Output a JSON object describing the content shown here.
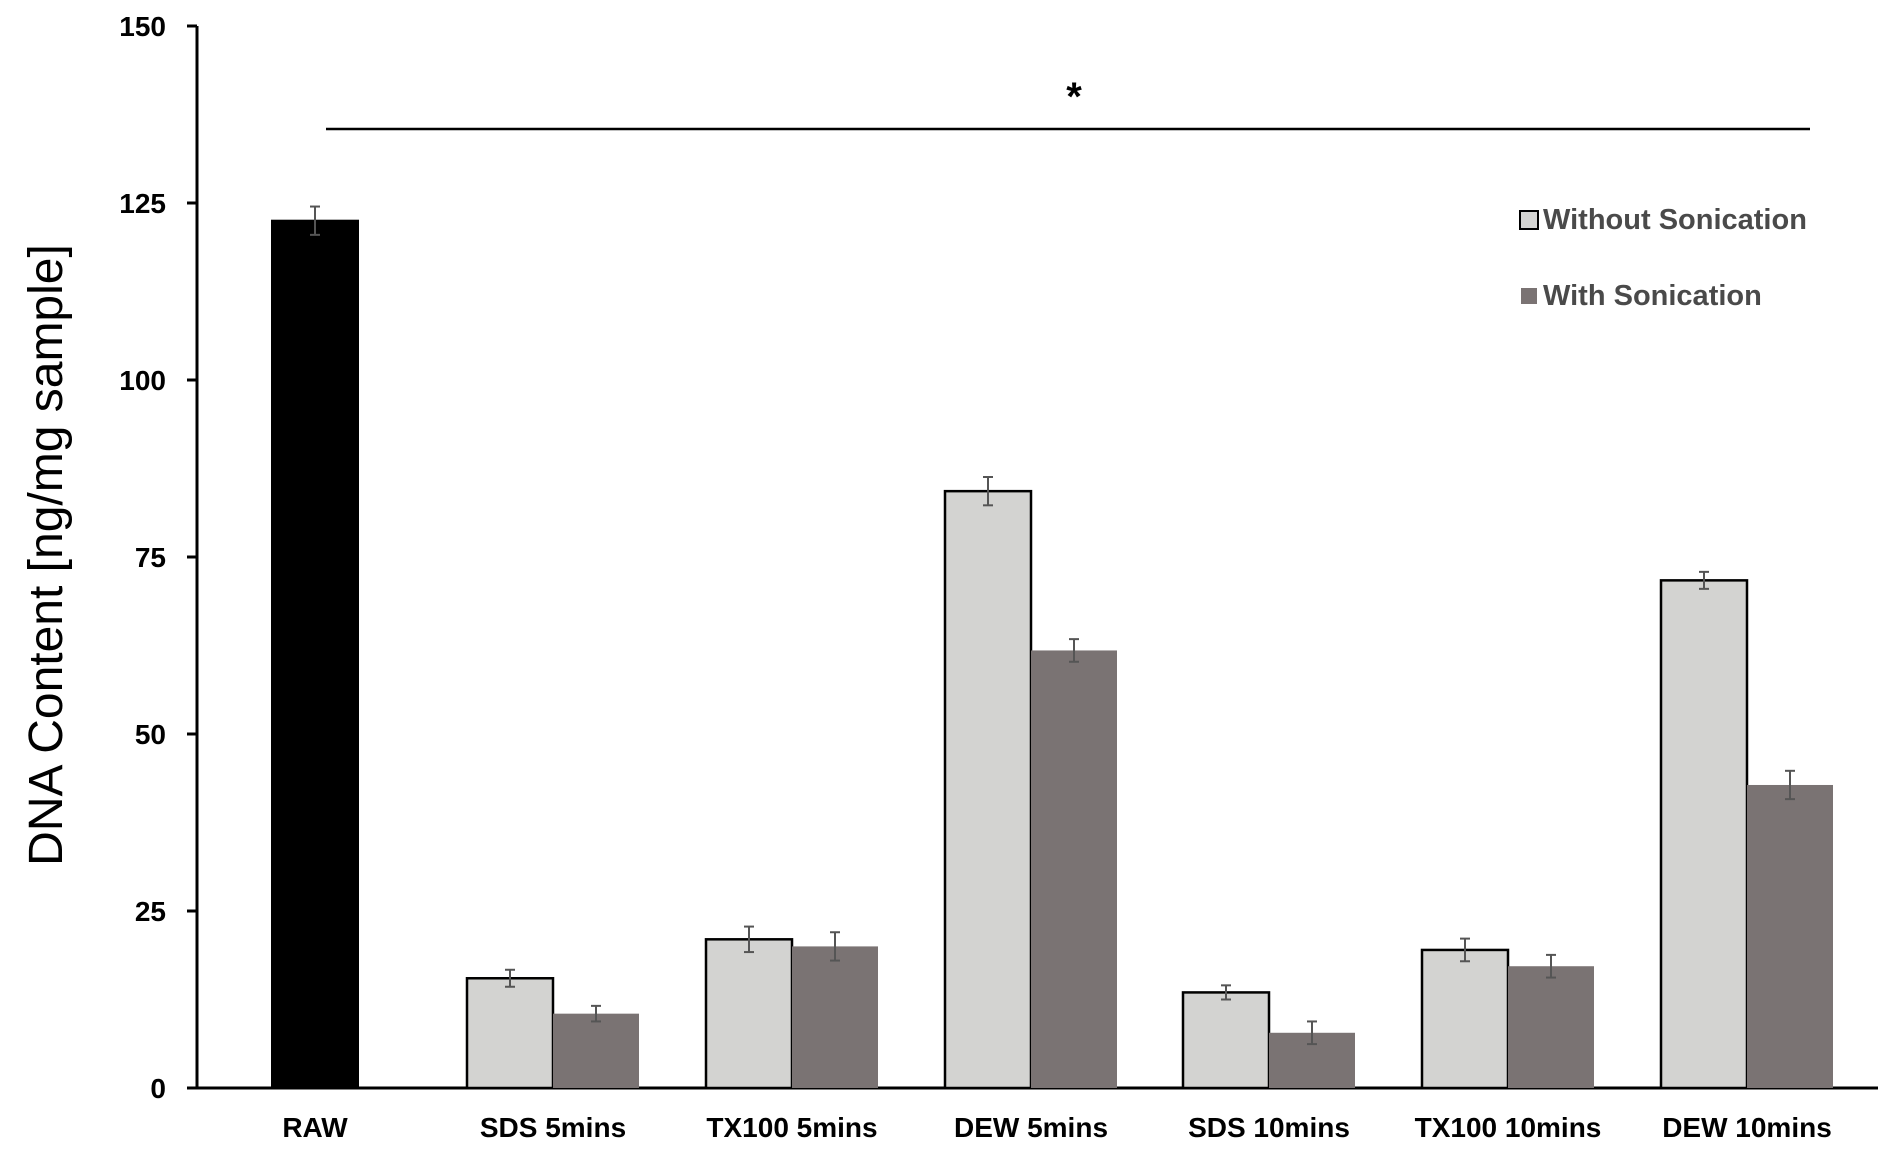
{
  "chart_data": {
    "type": "bar",
    "ylabel": "DNA Content [ng/mg sample]",
    "xlabel": "",
    "ylim": [
      0,
      150
    ],
    "yticks": [
      0,
      25,
      50,
      75,
      100,
      125,
      150
    ],
    "categories": [
      "RAW",
      "SDS 5mins",
      "TX100 5mins",
      "DEW 5mins",
      "SDS 10mins",
      "TX100 10mins",
      "DEW 10mins"
    ],
    "series": [
      {
        "name": "Without Sonication",
        "color": "#d3d3d1",
        "values": [
          122.5,
          15.5,
          21,
          84.3,
          13.5,
          19.5,
          71.7
        ],
        "errors": [
          2,
          1.2,
          1.8,
          2,
          1,
          1.6,
          1.2
        ]
      },
      {
        "name": "With Sonication",
        "color": "#7a7373",
        "values": [
          null,
          10.5,
          20,
          61.8,
          7.8,
          17.2,
          42.8
        ],
        "errors": [
          null,
          1.1,
          2,
          1.6,
          1.6,
          1.6,
          2
        ]
      }
    ],
    "raw_color": "#000000",
    "annotation": "*",
    "legend_position": "top-right",
    "grid": false
  }
}
